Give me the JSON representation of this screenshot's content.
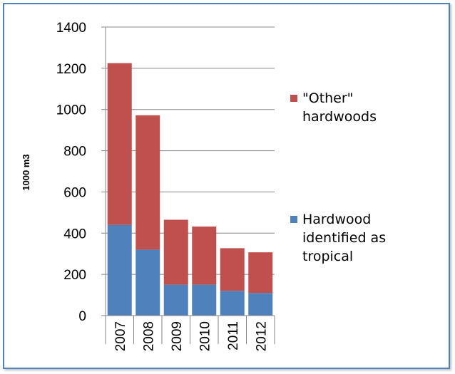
{
  "chart_data": {
    "type": "bar",
    "stacked": true,
    "categories": [
      "2007",
      "2008",
      "2009",
      "2010",
      "2011",
      "2012"
    ],
    "series": [
      {
        "name": "Hardwood identified as tropical",
        "legend_lines": [
          "Hardwood",
          "identified as",
          "tropical"
        ],
        "color": "#4f81bd",
        "values": [
          440,
          320,
          150,
          150,
          120,
          110
        ]
      },
      {
        "name": "\"Other\" hardwoods",
        "legend_lines": [
          "\"Other\"",
          "hardwoods"
        ],
        "color": "#c0504d",
        "values": [
          785,
          652,
          315,
          282,
          207,
          197
        ]
      }
    ],
    "ylabel": "1000 m3",
    "xlabel": "",
    "title": "",
    "ylim": [
      0,
      1400
    ],
    "yticks": [
      "0",
      "200",
      "400",
      "600",
      "800",
      "1000",
      "1200",
      "1400"
    ],
    "grid": true,
    "legend_position": "right"
  }
}
